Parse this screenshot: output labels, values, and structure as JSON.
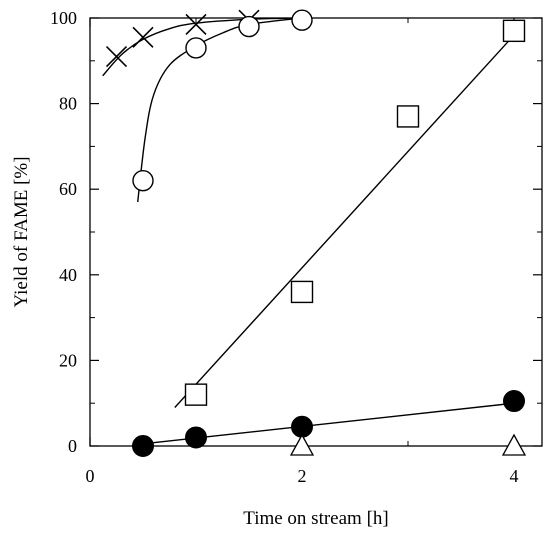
{
  "chart_data": {
    "type": "scatter",
    "title": "",
    "xlabel": "Time on stream [h]",
    "ylabel": "Yield of FAME [%]",
    "xlim": [
      0,
      4.3
    ],
    "ylim": [
      0,
      100
    ],
    "grid": false,
    "legend": "none",
    "x_ticks": [
      0,
      2,
      4
    ],
    "y_ticks": [
      0,
      20,
      40,
      60,
      80,
      100
    ],
    "series": [
      {
        "marker": "cross",
        "x": [
          0.25,
          0.5,
          1.0,
          1.5
        ],
        "y": [
          91,
          95.5,
          98.5,
          99.5
        ],
        "curve": {
          "x": [
            0.12,
            0.3,
            0.5,
            0.75,
            1.0,
            1.5,
            2.0
          ],
          "y": [
            86.5,
            91.5,
            95,
            97.5,
            98.8,
            99.7,
            100
          ]
        }
      },
      {
        "marker": "open-circle",
        "x": [
          0.5,
          1.0,
          1.5,
          2.0
        ],
        "y": [
          62,
          93,
          98,
          99.5
        ],
        "curve": {
          "x": [
            0.45,
            0.52,
            0.6,
            0.75,
            1.0,
            1.25,
            1.5,
            2.0
          ],
          "y": [
            57,
            72,
            82,
            89,
            93.5,
            96.5,
            98.5,
            100
          ]
        }
      },
      {
        "marker": "open-square",
        "x": [
          1.0,
          2.0,
          3.0,
          4.0
        ],
        "y": [
          12,
          36,
          77,
          97
        ],
        "curve": {
          "x": [
            0.8,
            4.0
          ],
          "y": [
            9,
            96
          ]
        }
      },
      {
        "marker": "filled-circle",
        "x": [
          0.5,
          1.0,
          2.0,
          4.0
        ],
        "y": [
          0,
          2,
          4.5,
          10.5
        ],
        "curve": {
          "x": [
            0.5,
            4.0
          ],
          "y": [
            0.5,
            10
          ]
        }
      },
      {
        "marker": "open-triangle",
        "x": [
          2.0,
          4.0
        ],
        "y": [
          0,
          0
        ]
      }
    ]
  }
}
